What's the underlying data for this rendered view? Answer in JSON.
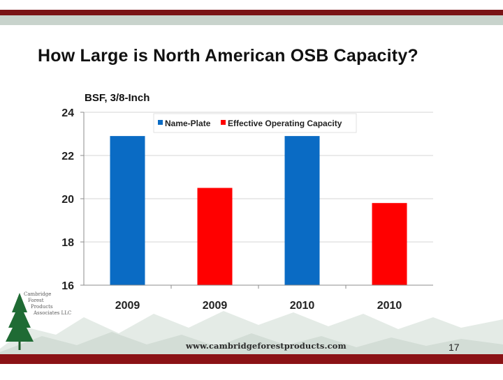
{
  "slide": {
    "title": "How Large is North American OSB Capacity?",
    "page_number": "17",
    "footer_url": "www.cambridgeforestproducts.com",
    "logo_lines": [
      "Cambridge",
      "Forest",
      "Products",
      "Associates LLC"
    ]
  },
  "colors": {
    "name_plate": "#0a6bc4",
    "effective": "#ff0000",
    "accent_red": "#7a1416"
  },
  "chart_data": {
    "type": "bar",
    "title": "",
    "ylabel": "BSF, 3/8-Inch",
    "xlabel": "",
    "ylim": [
      16,
      24
    ],
    "yticks": [
      16,
      18,
      20,
      22,
      24
    ],
    "categories": [
      "2009",
      "2009",
      "2010",
      "2010"
    ],
    "values": [
      22.9,
      20.5,
      22.9,
      19.8
    ],
    "series_of_bar": [
      "Name-Plate",
      "Effective Operating Capacity",
      "Name-Plate",
      "Effective Operating Capacity"
    ],
    "legend": [
      "Name-Plate",
      "Effective Operating Capacity"
    ],
    "legend_position": "top-right",
    "grid": true
  }
}
